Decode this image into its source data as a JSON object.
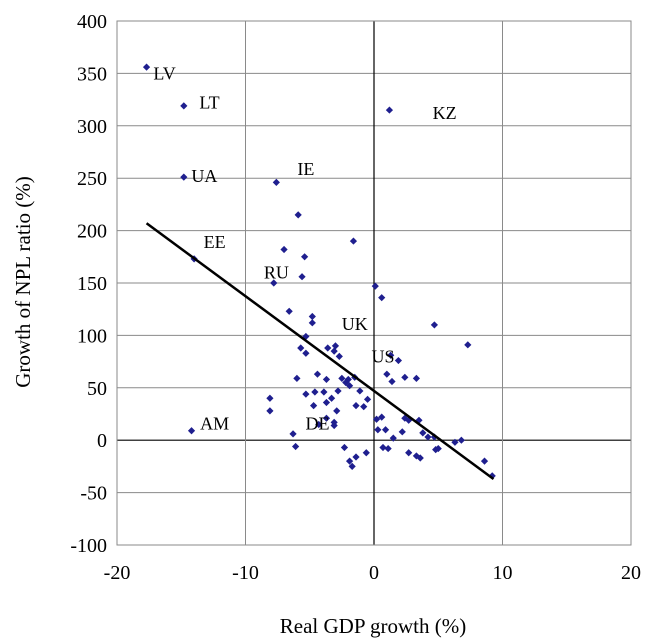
{
  "chart_data": {
    "type": "scatter",
    "title": "",
    "xlabel": "Real GDP growth (%)",
    "ylabel": "Growth of NPL ratio (%)",
    "xlim": [
      -20,
      20
    ],
    "ylim": [
      -100,
      400
    ],
    "xticks": [
      -20,
      -10,
      0,
      10,
      20
    ],
    "yticks": [
      -100,
      -50,
      0,
      50,
      100,
      150,
      200,
      250,
      300,
      350,
      400
    ],
    "grid": true,
    "legend": "none",
    "point_color": "#1f1f8f",
    "trend_color": "#000000",
    "trendline": {
      "x": [
        -17.7,
        9.3
      ],
      "y": [
        207,
        -37
      ]
    },
    "annotations": [
      {
        "text": "LV",
        "x": -16.3,
        "y": 350
      },
      {
        "text": "LT",
        "x": -12.8,
        "y": 322
      },
      {
        "text": "KZ",
        "x": 5.5,
        "y": 312
      },
      {
        "text": "UA",
        "x": -13.2,
        "y": 252
      },
      {
        "text": "IE",
        "x": -5.3,
        "y": 259
      },
      {
        "text": "EE",
        "x": -12.4,
        "y": 189
      },
      {
        "text": "RU",
        "x": -7.6,
        "y": 160
      },
      {
        "text": "UK",
        "x": -1.5,
        "y": 111
      },
      {
        "text": "US",
        "x": 0.7,
        "y": 80
      },
      {
        "text": "AM",
        "x": -12.4,
        "y": 16
      },
      {
        "text": "DE",
        "x": -4.4,
        "y": 16
      }
    ],
    "series": [
      {
        "points": [
          [
            -17.7,
            356
          ],
          [
            -14.8,
            319
          ],
          [
            1.2,
            315
          ],
          [
            -14.8,
            251
          ],
          [
            -7.6,
            246
          ],
          [
            -14.0,
            173
          ],
          [
            -5.9,
            215
          ],
          [
            -1.6,
            190
          ],
          [
            -7.0,
            182
          ],
          [
            -5.4,
            175
          ],
          [
            -7.8,
            150
          ],
          [
            -5.6,
            156
          ],
          [
            0.1,
            147
          ],
          [
            0.6,
            136
          ],
          [
            -6.6,
            123
          ],
          [
            -4.8,
            118
          ],
          [
            -4.8,
            112
          ],
          [
            -5.3,
            99
          ],
          [
            -5.7,
            88
          ],
          [
            -5.3,
            83
          ],
          [
            -3.6,
            88
          ],
          [
            -3.0,
            90
          ],
          [
            -2.7,
            80
          ],
          [
            -3.1,
            85
          ],
          [
            4.7,
            110
          ],
          [
            7.3,
            91
          ],
          [
            1.3,
            81
          ],
          [
            1.9,
            76
          ],
          [
            -4.4,
            63
          ],
          [
            -3.7,
            58
          ],
          [
            -2.5,
            59
          ],
          [
            -2.0,
            58
          ],
          [
            -1.5,
            60
          ],
          [
            -2.2,
            55
          ],
          [
            -1.9,
            52
          ],
          [
            -6.0,
            59
          ],
          [
            -5.3,
            44
          ],
          [
            -4.6,
            46
          ],
          [
            -3.9,
            46
          ],
          [
            -3.3,
            40
          ],
          [
            -2.8,
            47
          ],
          [
            -1.1,
            47
          ],
          [
            -1.4,
            33
          ],
          [
            -0.8,
            32
          ],
          [
            -0.5,
            39
          ],
          [
            1.0,
            63
          ],
          [
            1.4,
            56
          ],
          [
            2.4,
            60
          ],
          [
            3.3,
            59
          ],
          [
            -8.1,
            40
          ],
          [
            -8.1,
            28
          ],
          [
            -4.7,
            33
          ],
          [
            -3.7,
            36
          ],
          [
            -2.9,
            28
          ],
          [
            -3.7,
            21
          ],
          [
            -3.1,
            17
          ],
          [
            -4.3,
            15
          ],
          [
            -3.1,
            14
          ],
          [
            -6.3,
            6
          ],
          [
            -6.1,
            -6
          ],
          [
            -2.3,
            -7
          ],
          [
            -1.9,
            -20
          ],
          [
            -1.7,
            -25
          ],
          [
            -1.4,
            -16
          ],
          [
            -0.6,
            -12
          ],
          [
            0.2,
            20
          ],
          [
            0.6,
            22
          ],
          [
            0.3,
            10
          ],
          [
            0.9,
            10
          ],
          [
            1.5,
            2
          ],
          [
            0.7,
            -7
          ],
          [
            1.1,
            -8
          ],
          [
            2.2,
            8
          ],
          [
            2.4,
            21
          ],
          [
            2.7,
            19
          ],
          [
            3.5,
            19
          ],
          [
            3.8,
            7
          ],
          [
            4.2,
            3
          ],
          [
            4.7,
            3
          ],
          [
            2.7,
            -12
          ],
          [
            3.3,
            -15
          ],
          [
            3.6,
            -17
          ],
          [
            4.8,
            -9
          ],
          [
            5.0,
            -8
          ],
          [
            6.3,
            -2
          ],
          [
            6.8,
            0
          ],
          [
            8.6,
            -20
          ],
          [
            9.2,
            -34
          ],
          [
            -14.2,
            9
          ]
        ]
      }
    ]
  }
}
